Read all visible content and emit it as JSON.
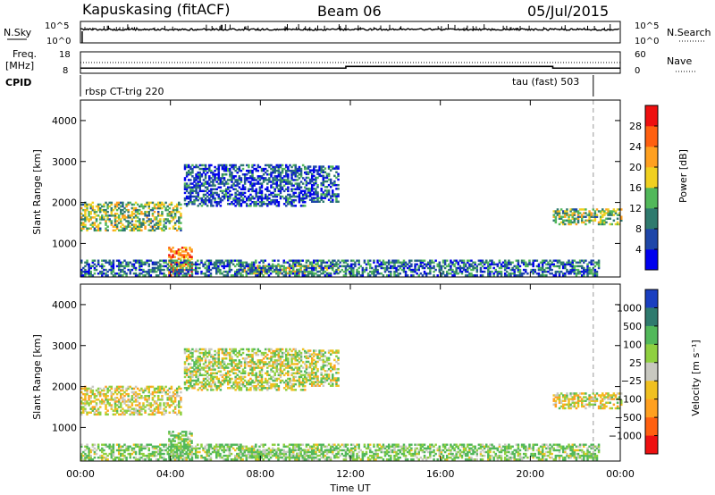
{
  "header": {
    "station": "Kapuskasing (fitACF)",
    "beam": "Beam 06",
    "date": "05/Jul/2015"
  },
  "noise_panel": {
    "left_label": "N.Sky",
    "right_label": "N.Search",
    "tick_top": "10^5",
    "tick_bottom": "10^0",
    "right_tick_top": "10^5",
    "right_tick_bottom": "10^0"
  },
  "freq_panel": {
    "left_label_line1": "Freq.",
    "left_label_line2": "[MHz]",
    "right_label": "Nave",
    "left_ticks": [
      "18",
      "8"
    ],
    "right_ticks": [
      "60",
      "0"
    ]
  },
  "cpid_panel": {
    "label": "CPID",
    "program_1": "rbsp CT-trig 220",
    "program_2": "tau (fast) 503"
  },
  "power_panel": {
    "ylabel": "Slant Range [km]",
    "yticks": [
      "1000",
      "2000",
      "3000",
      "4000"
    ],
    "colorbar_label": "Power [dB]",
    "colorbar_ticks": [
      "4",
      "8",
      "12",
      "16",
      "20",
      "24",
      "28"
    ],
    "colorbar_colors": [
      "#0000ee",
      "#1e46a8",
      "#2f7a6e",
      "#52b85a",
      "#f0d020",
      "#ffa020",
      "#ff6010",
      "#ee1010"
    ]
  },
  "velocity_panel": {
    "ylabel": "Slant Range [km]",
    "yticks": [
      "1000",
      "2000",
      "3000",
      "4000"
    ],
    "colorbar_label": "Velocity [m s⁻¹]",
    "colorbar_ticks": [
      "1000",
      "500",
      "100",
      "25",
      "−25",
      "−100",
      "−500",
      "−1000"
    ],
    "colorbar_colors": [
      "#1a3fc0",
      "#2f7a6e",
      "#52b85a",
      "#8fd040",
      "#c8c8c0",
      "#f0c020",
      "#ffa020",
      "#ff6010",
      "#ee1010"
    ]
  },
  "x_axis": {
    "label": "Time UT",
    "ticks": [
      "00:00",
      "04:00",
      "08:00",
      "12:00",
      "16:00",
      "20:00",
      "00:00"
    ]
  },
  "chart_data": {
    "type": "heatmap",
    "title": "Kapuskasing (fitACF) Beam 06 05/Jul/2015",
    "xlabel": "Time UT",
    "ylabel": "Slant Range [km]",
    "xlim": [
      0,
      24
    ],
    "ylim": [
      180,
      4500
    ],
    "x_ticks": [
      "00:00",
      "04:00",
      "08:00",
      "12:00",
      "16:00",
      "20:00",
      "00:00"
    ],
    "y_ticks": [
      1000,
      2000,
      3000,
      4000
    ],
    "power_scale_db": [
      0,
      30
    ],
    "velocity_scale_ms": [
      -1000,
      1000
    ],
    "scatter_regions": [
      {
        "t_start": 0.0,
        "t_end": 4.5,
        "range_low": 1300,
        "range_high": 2000,
        "power_db": 14,
        "velocity": -25
      },
      {
        "t_start": 3.9,
        "t_end": 4.9,
        "range_low": 200,
        "range_high": 900,
        "power_db": 22,
        "velocity": 100
      },
      {
        "t_start": 4.6,
        "t_end": 10.0,
        "range_low": 1900,
        "range_high": 2900,
        "power_db": 6,
        "velocity": 25
      },
      {
        "t_start": 10.0,
        "t_end": 11.5,
        "range_low": 2000,
        "range_high": 2900,
        "power_db": 6,
        "velocity": 25
      },
      {
        "t_start": 7.0,
        "t_end": 11.5,
        "range_low": 250,
        "range_high": 450,
        "power_db": 16,
        "velocity": 100
      },
      {
        "t_start": 0.0,
        "t_end": 23.0,
        "range_low": 200,
        "range_high": 600,
        "power_db": 8,
        "velocity": 100
      },
      {
        "t_start": 21.0,
        "t_end": 24.0,
        "range_low": 1450,
        "range_high": 1850,
        "power_db": 14,
        "velocity": -25
      }
    ],
    "cpid_segments": [
      {
        "t_start": 0.0,
        "t_end": 22.8,
        "program": "rbsp CT-trig 220"
      },
      {
        "t_start": 22.8,
        "t_end": 24.0,
        "program": "tau (fast) 503"
      }
    ],
    "frequency_mhz": [
      {
        "t_start": 0.0,
        "t_end": 11.8,
        "value": 10.4
      },
      {
        "t_start": 11.8,
        "t_end": 21.0,
        "value": 11.2
      },
      {
        "t_start": 21.0,
        "t_end": 24.0,
        "value": 10.4
      }
    ],
    "nave_level": 30
  }
}
